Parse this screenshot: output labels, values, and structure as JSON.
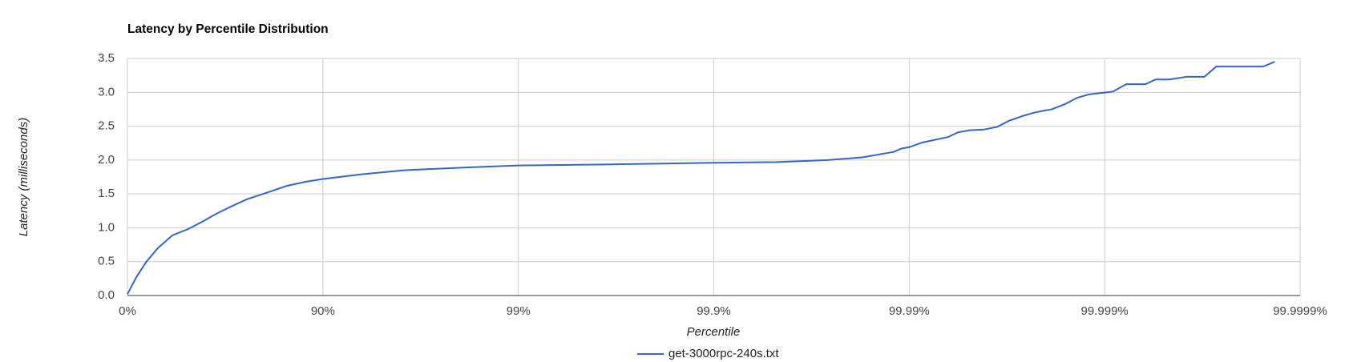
{
  "chart_data": {
    "type": "line",
    "title": "Latency by Percentile Distribution",
    "x_label": "Percentile",
    "y_label": "Latency (milliseconds)",
    "x_scale": "log",
    "grid": true,
    "legend": "bottom",
    "xlim": [
      1,
      1000000
    ],
    "xticks": [
      {
        "value": 1,
        "label": "0%"
      },
      {
        "value": 10,
        "label": "90%"
      },
      {
        "value": 100,
        "label": "99%"
      },
      {
        "value": 1000,
        "label": "99.9%"
      },
      {
        "value": 10000,
        "label": "99.99%"
      },
      {
        "value": 100000,
        "label": "99.999%"
      },
      {
        "value": 1000000,
        "label": "99.9999%"
      }
    ],
    "ylim": [
      0,
      3.5
    ],
    "yticks": [
      {
        "value": 0,
        "label": "0.0"
      },
      {
        "value": 0.5,
        "label": "0.5"
      },
      {
        "value": 1,
        "label": "1.0"
      },
      {
        "value": 1.5,
        "label": "1.5"
      },
      {
        "value": 2,
        "label": "2.0"
      },
      {
        "value": 2.5,
        "label": "2.5"
      },
      {
        "value": 3,
        "label": "3.0"
      },
      {
        "value": 3.5,
        "label": "3.5"
      }
    ],
    "x": [
      1,
      1.11,
      1.25,
      1.43,
      1.7,
      2.04,
      2.45,
      2.82,
      3.31,
      4.07,
      5.19,
      6.56,
      8.2,
      10,
      15.8,
      26.3,
      53.7,
      100,
      275,
      1000,
      2090,
      3800,
      5750,
      8320,
      9120,
      10000,
      11700,
      15800,
      17800,
      20400,
      24000,
      28200,
      32400,
      38000,
      43600,
      49000,
      53700,
      63100,
      72400,
      83200,
      95500,
      110000,
      129000,
      162000,
      182000,
      214000,
      263000,
      324000,
      372000,
      646000,
      741000
    ],
    "series": [
      {
        "name": "get-3000rpc-240s.txt",
        "color": "#3366cc",
        "values": [
          0.02,
          0.27,
          0.5,
          0.7,
          0.89,
          0.98,
          1.1,
          1.2,
          1.3,
          1.42,
          1.52,
          1.62,
          1.68,
          1.72,
          1.79,
          1.85,
          1.89,
          1.92,
          1.935,
          1.96,
          1.97,
          2.0,
          2.04,
          2.12,
          2.17,
          2.19,
          2.26,
          2.34,
          2.41,
          2.44,
          2.45,
          2.49,
          2.58,
          2.65,
          2.7,
          2.73,
          2.75,
          2.83,
          2.92,
          2.97,
          2.99,
          3.01,
          3.12,
          3.12,
          3.19,
          3.19,
          3.23,
          3.23,
          3.38,
          3.38,
          3.45
        ]
      }
    ]
  }
}
